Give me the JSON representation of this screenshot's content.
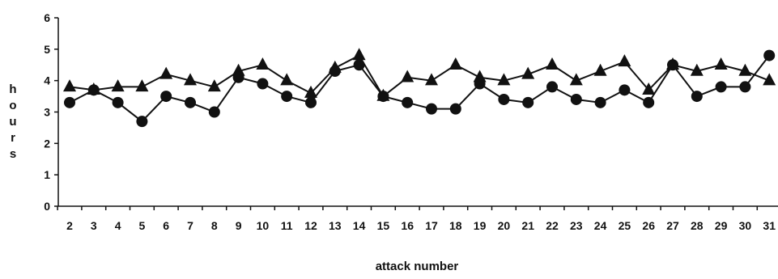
{
  "chart_data": {
    "type": "line",
    "xlabel": "attack number",
    "ylabel": "hours",
    "x": [
      2,
      3,
      4,
      5,
      6,
      7,
      8,
      9,
      10,
      11,
      12,
      13,
      14,
      15,
      16,
      17,
      18,
      19,
      20,
      21,
      22,
      23,
      24,
      25,
      26,
      27,
      28,
      29,
      30,
      31
    ],
    "ylim": [
      0,
      6
    ],
    "yticks": [
      0,
      1,
      2,
      3,
      4,
      5,
      6
    ],
    "grid": false,
    "legend": "none",
    "series": [
      {
        "marker": "triangle",
        "color": "#111111",
        "values": [
          3.8,
          3.7,
          3.8,
          3.8,
          4.2,
          4.0,
          3.8,
          4.3,
          4.5,
          4.0,
          3.6,
          4.4,
          4.8,
          3.5,
          4.1,
          4.0,
          4.5,
          4.1,
          4.0,
          4.2,
          4.5,
          4.0,
          4.3,
          4.6,
          3.7,
          4.5,
          4.3,
          4.5,
          4.3,
          4.0
        ]
      },
      {
        "marker": "circle",
        "color": "#111111",
        "values": [
          3.3,
          3.7,
          3.3,
          2.7,
          3.5,
          3.3,
          3.0,
          4.1,
          3.9,
          3.5,
          3.3,
          4.3,
          4.5,
          3.5,
          3.3,
          3.1,
          3.1,
          3.9,
          3.4,
          3.3,
          3.8,
          3.4,
          3.3,
          3.7,
          3.3,
          4.5,
          3.5,
          3.8,
          3.8,
          4.8
        ]
      }
    ]
  }
}
